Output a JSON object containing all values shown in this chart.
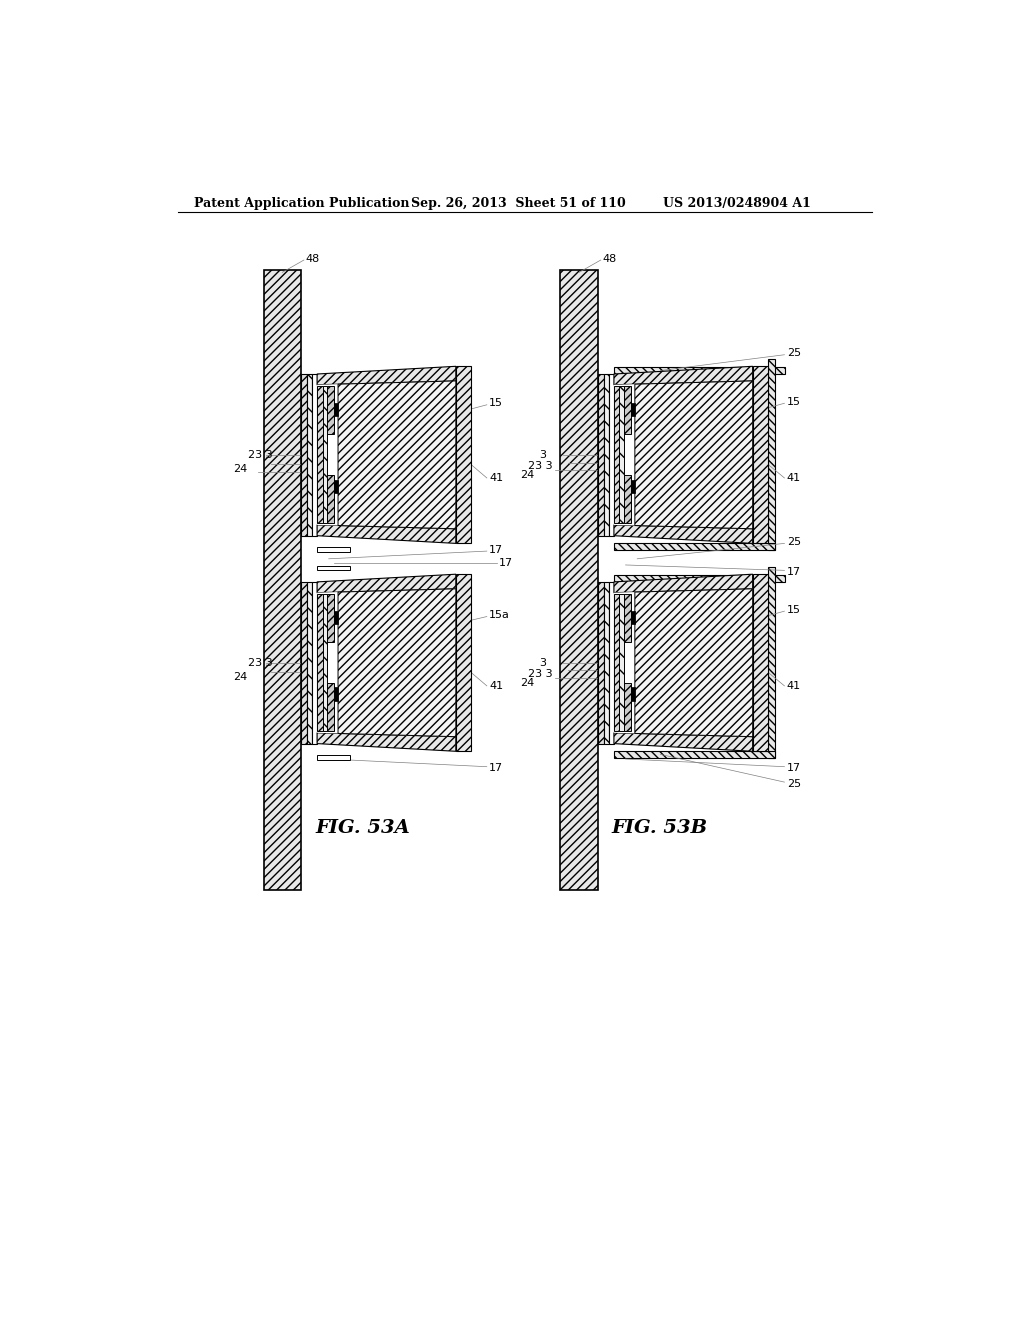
{
  "header_left": "Patent Application Publication",
  "header_mid": "Sep. 26, 2013  Sheet 51 of 110",
  "header_right": "US 2013/0248904 A1",
  "fig_a_label": "FIG. 53A",
  "fig_b_label": "FIG. 53B",
  "background_color": "#ffffff",
  "line_color": "#000000",
  "label_fontsize": 8,
  "header_fontsize": 9
}
